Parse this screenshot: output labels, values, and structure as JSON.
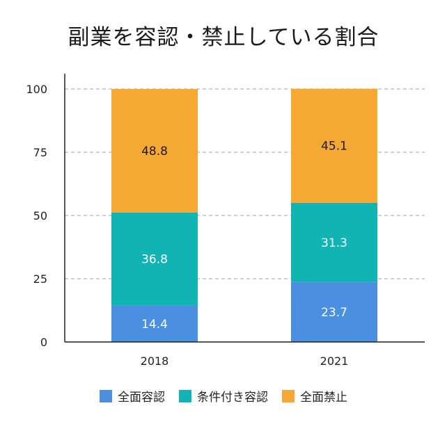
{
  "chart_data": {
    "type": "bar",
    "stacked": true,
    "title": "副業を容認・禁止している割合",
    "xlabel": "",
    "ylabel": "",
    "categories": [
      "2018",
      "2021"
    ],
    "ylim": [
      0,
      100
    ],
    "yticks": [
      0,
      25,
      50,
      75,
      100
    ],
    "grid": "horizontal dashed",
    "legend_position": "bottom",
    "series": [
      {
        "name": "全面容認",
        "values": [
          14.4,
          23.7
        ],
        "color": "#4a8fe0",
        "label_color": "#ffffff"
      },
      {
        "name": "条件付き容認",
        "values": [
          36.8,
          31.3
        ],
        "color": "#11b3b3",
        "label_color": "#ffffff"
      },
      {
        "name": "全面禁止",
        "values": [
          48.8,
          45.1
        ],
        "color": "#f5a833",
        "label_color": "#1a1a1a"
      }
    ]
  }
}
